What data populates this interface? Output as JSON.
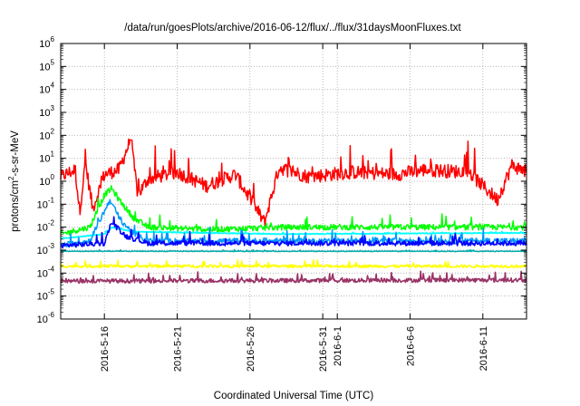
{
  "chart_data": {
    "type": "line",
    "title": "/data/run/goesPlots/archive/2016-06-12/flux/../flux/31daysMoonFluxes.txt",
    "xlabel": "Coordinated Universal Time (UTC)",
    "ylabel": "protons/cm2-s-sr-MeV",
    "ylabel_parts": {
      "base": "protons/cm",
      "sup": "2",
      "rest": "-s-sr-MeV"
    },
    "y_scale": "log",
    "ylim_exponents": [
      -6,
      6
    ],
    "y_tick_base": "10",
    "y_tick_exponents": [
      "6",
      "5",
      "4",
      "3",
      "2",
      "1",
      "0",
      "-1",
      "-2",
      "-3",
      "-4",
      "-5",
      "-6"
    ],
    "x_range": [
      "2016-05-13",
      "2016-06-14"
    ],
    "x_ticks": [
      {
        "label": "2016-5-16",
        "day": 3
      },
      {
        "label": "2016-5-21",
        "day": 8
      },
      {
        "label": "2016-5-26",
        "day": 13
      },
      {
        "label": "2016-5-31",
        "day": 18
      },
      {
        "label": "2016-6-1",
        "day": 19
      },
      {
        "label": "2016-6-6",
        "day": 24
      },
      {
        "label": "2016-6-11",
        "day": 29
      }
    ],
    "grid": true,
    "series": [
      {
        "color": "#ff0000",
        "base_log": 0.2,
        "noise": 0.6,
        "width": 1.5,
        "key_points": [
          [
            0,
            0.2
          ],
          [
            1,
            0.5
          ],
          [
            1.3,
            -1.3
          ],
          [
            1.7,
            0.8
          ],
          [
            2.2,
            -1.2
          ],
          [
            3,
            0.3
          ],
          [
            4,
            0.5
          ],
          [
            4.8,
            1.8
          ],
          [
            5.3,
            -0.6
          ],
          [
            6,
            0.1
          ],
          [
            8,
            0.4
          ],
          [
            10,
            -0.2
          ],
          [
            12,
            0.3
          ],
          [
            14,
            -1.8
          ],
          [
            15,
            0.6
          ],
          [
            17,
            0.2
          ],
          [
            20,
            0.4
          ],
          [
            23,
            0.3
          ],
          [
            25,
            0.5
          ],
          [
            28,
            0.4
          ],
          [
            30,
            -0.8
          ],
          [
            31,
            0.7
          ],
          [
            32,
            0.4
          ]
        ]
      },
      {
        "color": "#00ff00",
        "base_log": -2.0,
        "noise": 0.25,
        "width": 1.5,
        "key_points": [
          [
            0,
            -2.3
          ],
          [
            2,
            -2.0
          ],
          [
            3,
            -0.6
          ],
          [
            3.5,
            -0.3
          ],
          [
            4,
            -0.8
          ],
          [
            5,
            -1.6
          ],
          [
            6,
            -2.0
          ],
          [
            10,
            -2.1
          ],
          [
            16,
            -2.0
          ],
          [
            22,
            -2.0
          ],
          [
            28,
            -2.0
          ],
          [
            32,
            -2.0
          ]
        ]
      },
      {
        "color": "#00ffff",
        "base_log": -2.3,
        "noise": 0.03,
        "width": 1.8,
        "key_points": [
          [
            0,
            -2.5
          ],
          [
            3,
            -2.3
          ],
          [
            3.5,
            -2.0
          ],
          [
            5,
            -2.2
          ],
          [
            15,
            -2.3
          ],
          [
            32,
            -2.25
          ]
        ]
      },
      {
        "color": "#0099ff",
        "base_log": -2.5,
        "noise": 0.25,
        "width": 1.5,
        "key_points": [
          [
            0,
            -2.8
          ],
          [
            2,
            -2.6
          ],
          [
            3,
            -1.3
          ],
          [
            3.4,
            -0.8
          ],
          [
            4,
            -1.6
          ],
          [
            5,
            -2.3
          ],
          [
            6,
            -2.6
          ],
          [
            32,
            -2.6
          ]
        ]
      },
      {
        "color": "#0000ff",
        "base_log": -2.6,
        "noise": 0.22,
        "width": 1.6,
        "key_points": [
          [
            0,
            -2.8
          ],
          [
            3,
            -2.7
          ],
          [
            3.5,
            -1.8
          ],
          [
            4.5,
            -2.4
          ],
          [
            6,
            -2.7
          ],
          [
            32,
            -2.7
          ]
        ]
      },
      {
        "color": "#00aaaa",
        "base_log": -3.05,
        "noise": 0.03,
        "width": 1.5,
        "key_points": [
          [
            0,
            -3.05
          ],
          [
            32,
            -3.05
          ]
        ]
      },
      {
        "color": "#ffff00",
        "base_log": -3.7,
        "noise": 0.12,
        "width": 1.6,
        "key_points": [
          [
            0,
            -3.7
          ],
          [
            32,
            -3.7
          ]
        ]
      },
      {
        "color": "#993366",
        "base_log": -4.3,
        "noise": 0.18,
        "width": 1.6,
        "key_points": [
          [
            0,
            -4.35
          ],
          [
            32,
            -4.3
          ]
        ]
      }
    ]
  }
}
